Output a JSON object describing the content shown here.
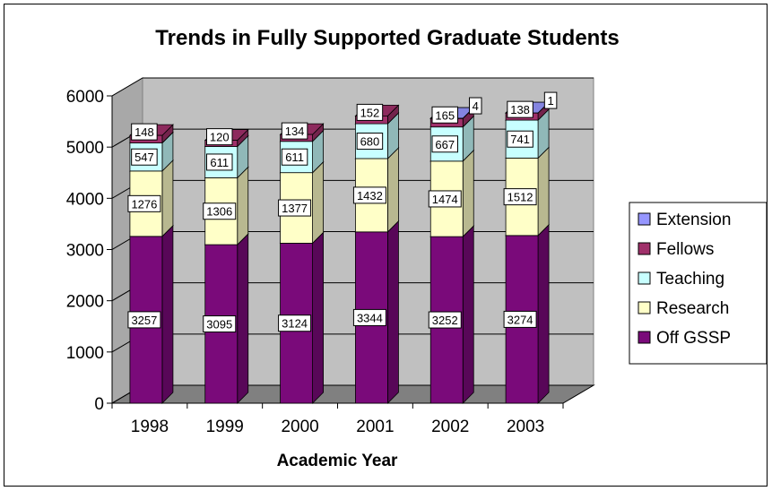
{
  "chart_data": {
    "type": "bar",
    "title": "Trends in Fully  Supported Graduate Students",
    "xlabel": "Academic Year",
    "ylabel": "",
    "ylim": [
      0,
      6000
    ],
    "yticks": [
      0,
      1000,
      2000,
      3000,
      4000,
      5000,
      6000
    ],
    "categories": [
      "1998",
      "1999",
      "2000",
      "2001",
      "2002",
      "2003"
    ],
    "stacked": true,
    "grid": true,
    "legend_position": "right",
    "series": [
      {
        "name": "Off GSSP",
        "color": "#7a0a7a",
        "values": [
          3257,
          3095,
          3124,
          3344,
          3252,
          3274
        ],
        "labels": [
          "3257",
          "3095",
          "3124",
          "3344",
          "3252",
          "3274"
        ]
      },
      {
        "name": "Research",
        "color": "#ffffc8",
        "values": [
          1276,
          1306,
          1377,
          1432,
          1474,
          1512
        ],
        "labels": [
          "1276",
          "1306",
          "1377",
          "1432",
          "1474",
          "1512"
        ]
      },
      {
        "name": "Teaching",
        "color": "#c8ffff",
        "values": [
          547,
          611,
          611,
          680,
          667,
          741
        ],
        "labels": [
          "547",
          "611",
          "611",
          "680",
          "667",
          "741"
        ]
      },
      {
        "name": "Fellows",
        "color": "#a0306a",
        "values": [
          148,
          120,
          134,
          152,
          165,
          138
        ],
        "labels": [
          "148",
          "120",
          "134",
          "152",
          "165",
          "138"
        ]
      },
      {
        "name": "Extension",
        "color": "#9696ff",
        "values": [
          0,
          0,
          0,
          0,
          4,
          1
        ],
        "labels": [
          "",
          "",
          "",
          "",
          "4",
          "1"
        ]
      }
    ],
    "legend_order": [
      "Extension",
      "Fellows",
      "Teaching",
      "Research",
      "Off GSSP"
    ]
  }
}
